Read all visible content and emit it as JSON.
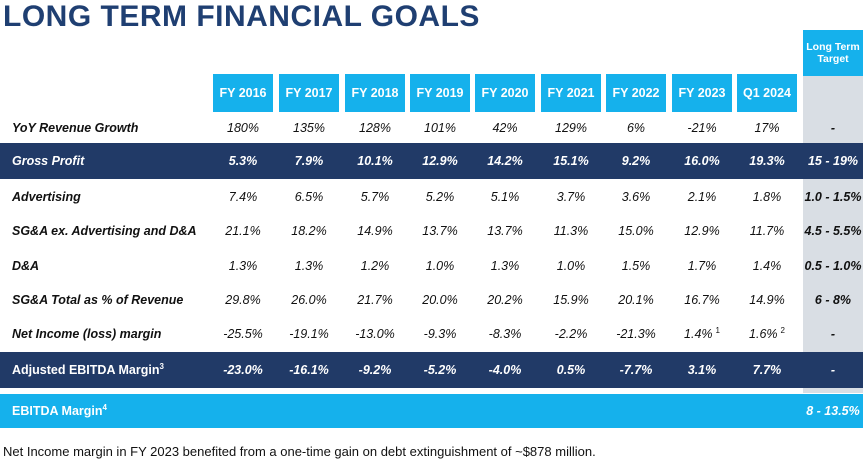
{
  "title": "LONG TERM FINANCIAL GOALS",
  "target_header": "Long Term Target",
  "years": [
    "FY 2016",
    "FY 2017",
    "FY 2018",
    "FY 2019",
    "FY 2020",
    "FY 2021",
    "FY 2022",
    "FY 2023",
    "Q1 2024"
  ],
  "colors": {
    "header_blue": "#15b1ec",
    "navy": "#213a67",
    "title_navy": "#1f3f72",
    "target_gray": "#d9dee4"
  },
  "rows": [
    {
      "label": "YoY Revenue Growth",
      "values": [
        "180%",
        "135%",
        "128%",
        "101%",
        "42%",
        "129%",
        "6%",
        "-21%",
        "17%"
      ],
      "target": "-",
      "style": "plain"
    },
    {
      "label": "Gross Profit",
      "values": [
        "5.3%",
        "7.9%",
        "10.1%",
        "12.9%",
        "14.2%",
        "15.1%",
        "9.2%",
        "16.0%",
        "19.3%"
      ],
      "target": "15 - 19%",
      "style": "dark"
    },
    {
      "label": "Advertising",
      "values": [
        "7.4%",
        "6.5%",
        "5.7%",
        "5.2%",
        "5.1%",
        "3.7%",
        "3.6%",
        "2.1%",
        "1.8%"
      ],
      "target": "1.0 - 1.5%",
      "style": "plain"
    },
    {
      "label": "SG&A ex. Advertising and D&A",
      "values": [
        "21.1%",
        "18.2%",
        "14.9%",
        "13.7%",
        "13.7%",
        "11.3%",
        "15.0%",
        "12.9%",
        "11.7%"
      ],
      "target": "4.5 - 5.5%",
      "style": "plain"
    },
    {
      "label": "D&A",
      "values": [
        "1.3%",
        "1.3%",
        "1.2%",
        "1.0%",
        "1.3%",
        "1.0%",
        "1.5%",
        "1.7%",
        "1.4%"
      ],
      "target": "0.5 - 1.0%",
      "style": "plain"
    },
    {
      "label": "SG&A Total as % of Revenue",
      "values": [
        "29.8%",
        "26.0%",
        "21.7%",
        "20.0%",
        "20.2%",
        "15.9%",
        "20.1%",
        "16.7%",
        "14.9%"
      ],
      "target": "6 - 8%",
      "style": "plain"
    },
    {
      "label": "Net Income (loss) margin",
      "values": [
        "-25.5%",
        "-19.1%",
        "-13.0%",
        "-9.3%",
        "-8.3%",
        "-2.2%",
        "-21.3%",
        "1.4%",
        "1.6%"
      ],
      "sups": [
        "",
        "",
        "",
        "",
        "",
        "",
        "",
        "1",
        "2"
      ],
      "target": "-",
      "style": "plain"
    },
    {
      "label": "Adjusted EBITDA Margin",
      "label_sup": "3",
      "values": [
        "-23.0%",
        "-16.1%",
        "-9.2%",
        "-5.2%",
        "-4.0%",
        "0.5%",
        "-7.7%",
        "3.1%",
        "7.7%"
      ],
      "target": "-",
      "style": "dark"
    }
  ],
  "ebitda": {
    "label": "EBITDA Margin",
    "label_sup": "4",
    "target": "8 - 13.5%"
  },
  "footnote": "Net Income margin in FY 2023 benefited from a one-time gain on debt extinguishment of ~$878 million."
}
